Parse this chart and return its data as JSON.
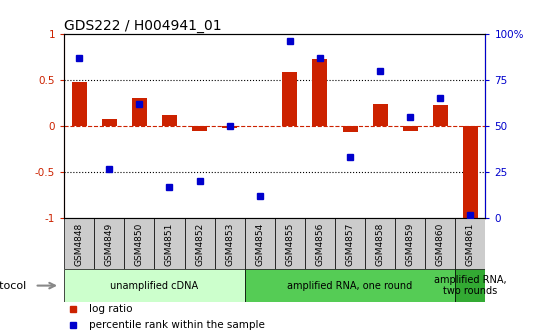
{
  "title": "GDS222 / H004941_01",
  "samples": [
    "GSM4848",
    "GSM4849",
    "GSM4850",
    "GSM4851",
    "GSM4852",
    "GSM4853",
    "GSM4854",
    "GSM4855",
    "GSM4856",
    "GSM4857",
    "GSM4858",
    "GSM4859",
    "GSM4860",
    "GSM4861"
  ],
  "log_ratio": [
    0.48,
    0.08,
    0.3,
    0.12,
    -0.05,
    -0.02,
    0.0,
    0.58,
    0.72,
    -0.07,
    0.24,
    -0.05,
    0.23,
    -1.0
  ],
  "percentile": [
    87,
    27,
    62,
    17,
    20,
    50,
    12,
    96,
    87,
    33,
    80,
    55,
    65,
    2
  ],
  "bar_color": "#cc2200",
  "dot_color": "#0000cc",
  "bg_color": "#ffffff",
  "label_bg": "#cccccc",
  "ylim": [
    -1,
    1
  ],
  "ylim_right": [
    0,
    100
  ],
  "yticks_left": [
    -1,
    -0.5,
    0,
    0.5,
    1
  ],
  "ytick_labels_left": [
    "-1",
    "-0.5",
    "0",
    "0.5",
    "1"
  ],
  "yticks_right": [
    0,
    25,
    50,
    75,
    100
  ],
  "ytick_labels_right": [
    "0",
    "25",
    "50",
    "75",
    "100%"
  ],
  "dotted_lines": [
    0.5,
    -0.5
  ],
  "zero_dashed_color": "#cc2200",
  "protocol_groups": [
    {
      "label": "unamplified cDNA",
      "start": 0,
      "end": 5,
      "color": "#ccffcc"
    },
    {
      "label": "amplified RNA, one round",
      "start": 6,
      "end": 12,
      "color": "#55cc55"
    },
    {
      "label": "amplified RNA,\ntwo rounds",
      "start": 13,
      "end": 13,
      "color": "#33aa33"
    }
  ],
  "legend_items": [
    {
      "label": "log ratio",
      "color": "#cc2200"
    },
    {
      "label": "percentile rank within the sample",
      "color": "#0000cc"
    }
  ],
  "protocol_label": "protocol"
}
